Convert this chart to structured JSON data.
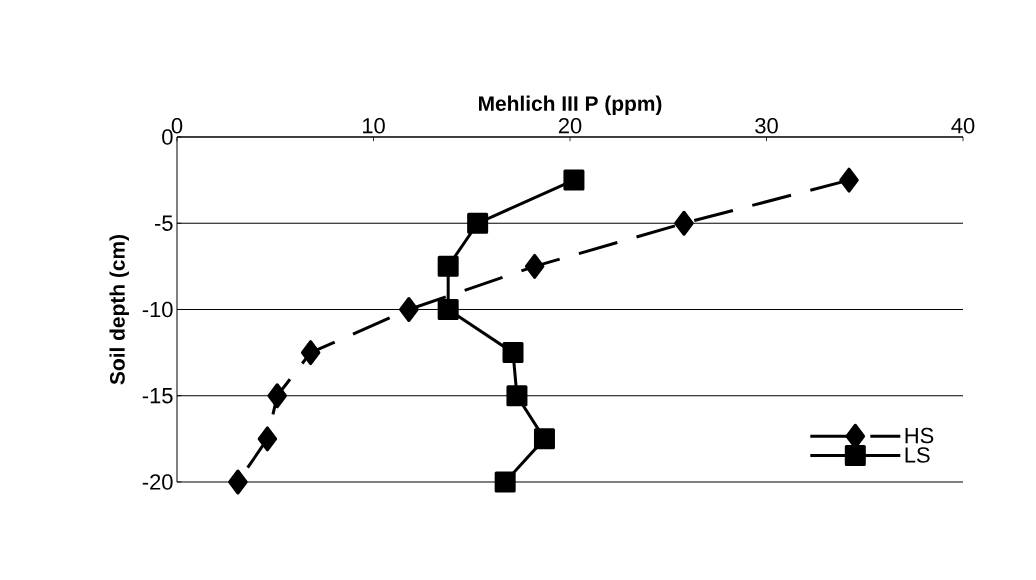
{
  "chart_data": {
    "type": "line",
    "xlabel": "Mehlich III P (ppm)",
    "ylabel": "Soil depth (cm)",
    "xlim": [
      0,
      40
    ],
    "ylim": [
      -20,
      0
    ],
    "xticks": [
      0,
      10,
      20,
      30,
      40
    ],
    "yticks": [
      -20,
      -15,
      -10,
      -5,
      0
    ],
    "grid": "y",
    "legend": "bottom right",
    "series": [
      {
        "name": "HS",
        "color": "#000000",
        "marker": "diamond",
        "line_style": "dashed",
        "x": [
          34.2,
          25.8,
          18.2,
          11.8,
          6.8,
          5.1,
          4.6,
          3.1
        ],
        "values": [
          -2.5,
          -5,
          -7.5,
          -10,
          -12.5,
          -15,
          -17.5,
          -20
        ]
      },
      {
        "name": "LS",
        "color": "#000000",
        "marker": "square",
        "line_style": "solid",
        "x": [
          20.2,
          15.3,
          13.8,
          13.8,
          17.1,
          17.3,
          18.7,
          16.7
        ],
        "values": [
          -2.5,
          -5,
          -7.5,
          -10,
          -12.5,
          -15,
          -17.5,
          -20
        ]
      }
    ]
  }
}
